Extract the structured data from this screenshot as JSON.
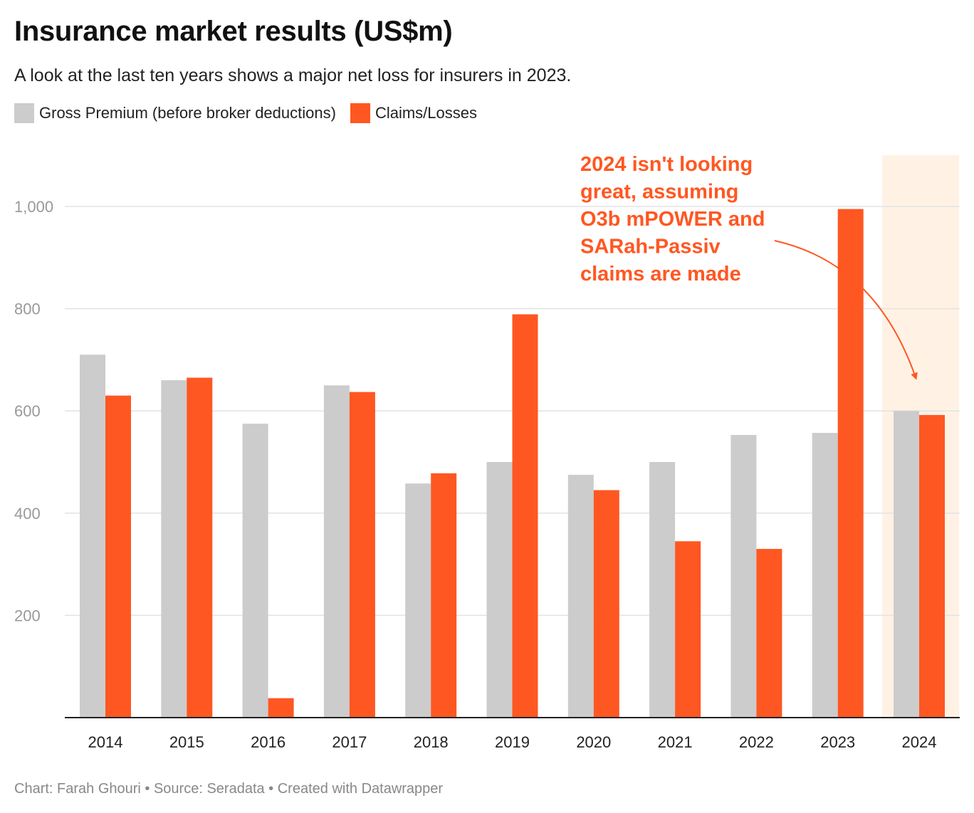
{
  "title": "Insurance market results (US$m)",
  "subtitle": "A look at the last ten years shows a major net loss for insurers in 2023.",
  "footer": "Chart: Farah Ghouri • Source: Seradata • Created with Datawrapper",
  "colors": {
    "gross": "#cccccc",
    "claims": "#ff5722",
    "highlight": "#fff2e5",
    "annotation": "#ff5722"
  },
  "chart_data": {
    "type": "bar",
    "categories": [
      "2014",
      "2015",
      "2016",
      "2017",
      "2018",
      "2019",
      "2020",
      "2021",
      "2022",
      "2023",
      "2024"
    ],
    "series": [
      {
        "name": "Gross Premium (before broker deductions)",
        "values": [
          710,
          660,
          575,
          650,
          458,
          500,
          475,
          500,
          553,
          557,
          600
        ]
      },
      {
        "name": "Claims/Losses",
        "values": [
          630,
          665,
          38,
          637,
          478,
          789,
          445,
          345,
          330,
          995,
          592
        ]
      }
    ],
    "y_ticks": [
      "200",
      "400",
      "600",
      "800",
      "1,000"
    ],
    "y_tick_values": [
      200,
      400,
      600,
      800,
      1000
    ],
    "ylim": [
      0,
      1100
    ],
    "highlight_category": "2024",
    "annotation": {
      "lines": [
        "2024 isn't looking",
        "great, assuming",
        "O3b mPOWER and",
        "SARah-Passiv",
        "claims are made"
      ],
      "target_category": "2024"
    },
    "legend_position": "top-left",
    "grid": true
  }
}
